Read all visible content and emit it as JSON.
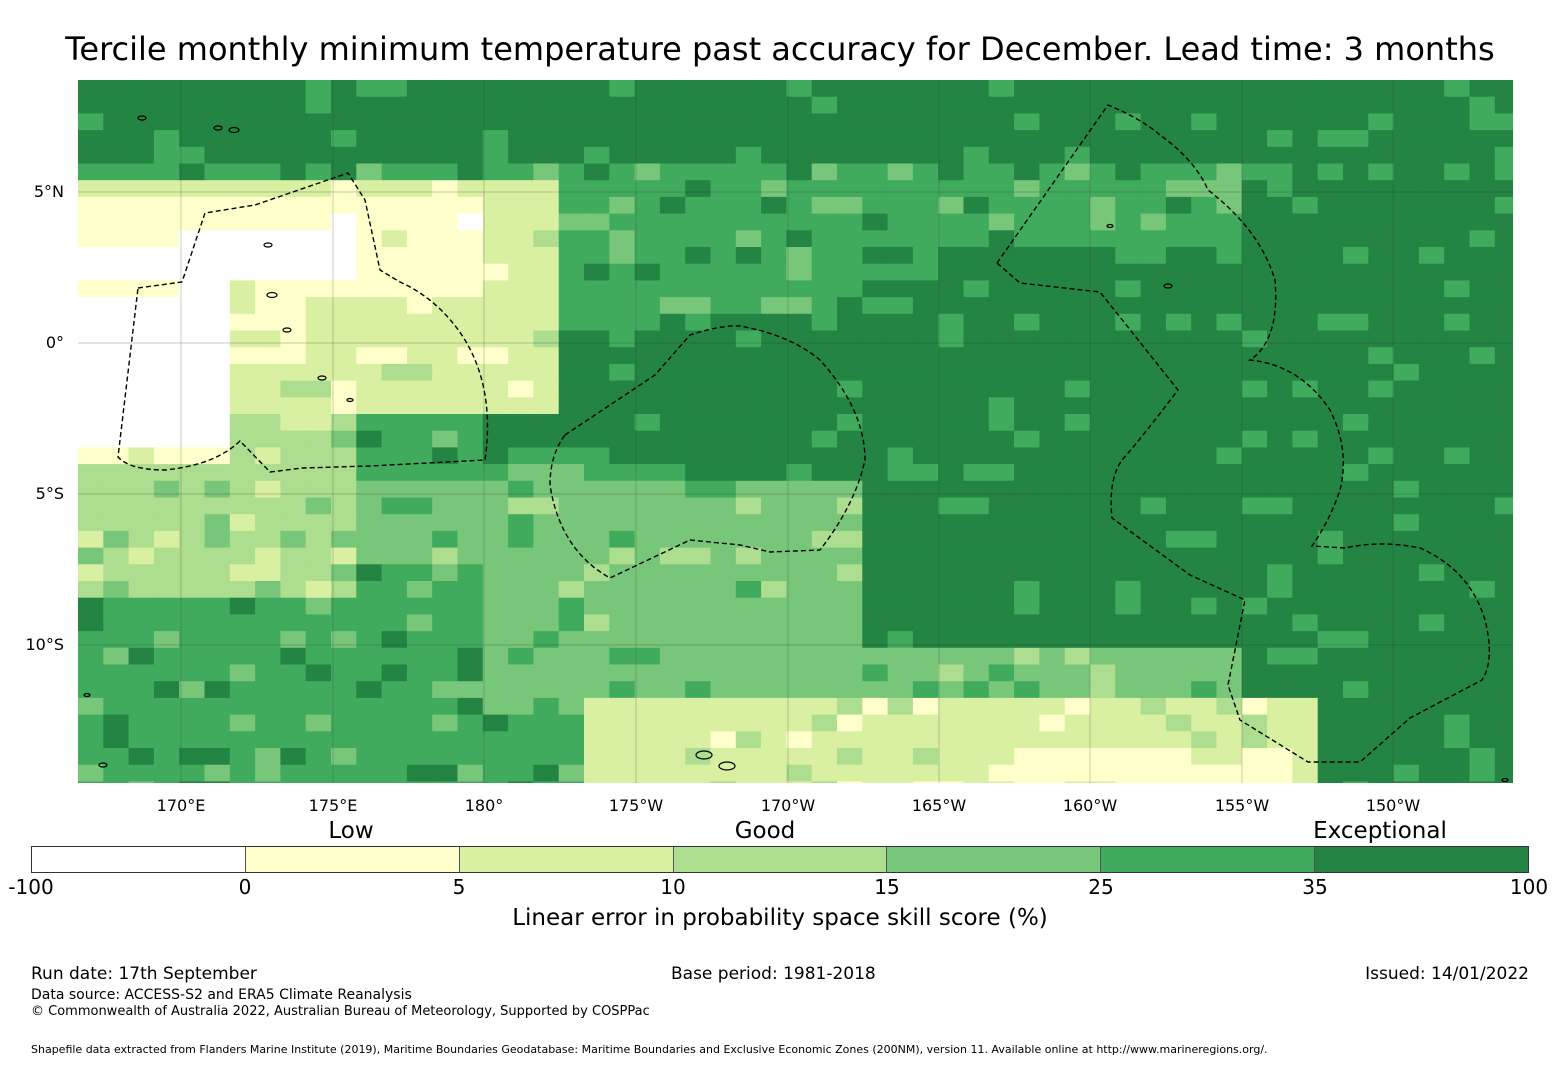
{
  "title": "Tercile monthly minimum temperature past accuracy for December. Lead time: 3 months",
  "map": {
    "lon_ticks": [
      "170°E",
      "175°E",
      "180°",
      "175°W",
      "170°W",
      "165°W",
      "160°W",
      "155°W",
      "150°W"
    ],
    "lat_ticks": [
      "5°N",
      "0°",
      "5°S",
      "10°S"
    ]
  },
  "colorbar": {
    "categories": [
      "Low",
      "Good",
      "Exceptional"
    ],
    "ticks": [
      "-100",
      "0",
      "5",
      "10",
      "15",
      "25",
      "35",
      "100"
    ],
    "colors": [
      "#ffffff",
      "#ffffcc",
      "#d9f0a3",
      "#addd8e",
      "#78c679",
      "#41ab5d",
      "#238443"
    ],
    "label": "Linear error in probability space skill score (%)"
  },
  "footer": {
    "run_date": "Run date: 17th September",
    "base_period": "Base period: 1981-2018",
    "issued": "Issued: 14/01/2022",
    "data_source": "Data source: ACCESS-S2 and ERA5 Climate Reanalysis",
    "copyright": "© Commonwealth of Australia 2022, Australian Bureau of Meteorology, Supported by COSPPac",
    "shapefile": "Shapefile data extracted from Flanders Marine Institute (2019), Maritime Boundaries Geodatabase: Maritime Boundaries and Exclusive Economic Zones (200NM), version 11. Available online at http://www.marineregions.org/."
  }
}
